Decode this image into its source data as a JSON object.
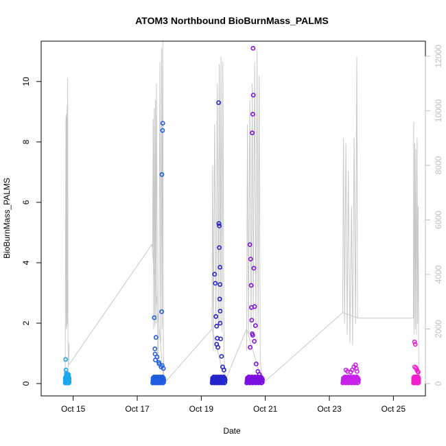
{
  "chart_data": {
    "type": "scatter",
    "title": "ATOM3 Northbound BioBurnMass_PALMS",
    "xlabel": "Date",
    "ylabel": "BioBurnMass_PALMS",
    "xlim": [
      "2016-10-14T00:00",
      "2016-10-26T00:00"
    ],
    "ylim": [
      0,
      11.2
    ],
    "y2lim": [
      0,
      12400
    ],
    "x_ticks": [
      {
        "label": "Oct 15",
        "value": "2016-10-15"
      },
      {
        "label": "Oct 17",
        "value": "2016-10-17"
      },
      {
        "label": "Oct 19",
        "value": "2016-10-19"
      },
      {
        "label": "Oct 21",
        "value": "2016-10-21"
      },
      {
        "label": "Oct 23",
        "value": "2016-10-23"
      },
      {
        "label": "Oct 25",
        "value": "2016-10-25"
      }
    ],
    "y_ticks": [
      {
        "label": "0",
        "value": 0
      },
      {
        "label": "2",
        "value": 2
      },
      {
        "label": "4",
        "value": 4
      },
      {
        "label": "6",
        "value": 6
      },
      {
        "label": "8",
        "value": 8
      },
      {
        "label": "10",
        "value": 10
      }
    ],
    "y2_ticks": [
      {
        "label": "0",
        "value": 0
      },
      {
        "label": "2000",
        "value": 2000
      },
      {
        "label": "4000",
        "value": 4000
      },
      {
        "label": "6000",
        "value": 6000
      },
      {
        "label": "8000",
        "value": 8000
      },
      {
        "label": "10000",
        "value": 10000
      },
      {
        "label": "12000",
        "value": 12000
      }
    ],
    "grid": false,
    "altitude_color": "#c8c8c8",
    "flights": [
      {
        "color": "#1aa7ee",
        "start": "2016-10-14T18:00",
        "end": "2016-10-14T21:00",
        "points": [
          [
            0.12,
            0.8
          ],
          [
            0.2,
            0.45
          ],
          [
            0.3,
            0.35
          ],
          [
            0.35,
            0.3
          ],
          [
            0.5,
            0.32
          ],
          [
            0.55,
            0.28
          ],
          [
            0.7,
            0.25
          ],
          [
            0.8,
            0.3
          ],
          [
            0.9,
            0.2
          ]
        ],
        "alt_profile": [
          [
            0,
            0
          ],
          [
            0.05,
            2000
          ],
          [
            0.1,
            5700
          ],
          [
            0.18,
            9800
          ],
          [
            0.28,
            2000
          ],
          [
            0.35,
            9900
          ],
          [
            0.4,
            2100
          ],
          [
            0.5,
            10200
          ],
          [
            0.55,
            2200
          ],
          [
            0.62,
            11200
          ],
          [
            0.7,
            1500
          ],
          [
            0.8,
            600
          ],
          [
            0.9,
            900
          ],
          [
            1,
            1500
          ]
        ]
      },
      {
        "color": "#1f5ce0",
        "start": "2016-10-17T11:30",
        "end": "2016-10-17T20:00",
        "points": [
          [
            0.15,
            2.18
          ],
          [
            0.2,
            1.15
          ],
          [
            0.22,
            0.98
          ],
          [
            0.3,
            1.53
          ],
          [
            0.25,
            0.78
          ],
          [
            0.4,
            0.88
          ],
          [
            0.55,
            0.7
          ],
          [
            0.58,
            0.65
          ],
          [
            0.75,
            0.55
          ],
          [
            0.85,
            0.6
          ],
          [
            0.82,
            6.92
          ],
          [
            0.88,
            8.38
          ],
          [
            0.9,
            8.62
          ],
          [
            0.8,
            2.38
          ],
          [
            0.95,
            0.5
          ]
        ],
        "alt_profile": [
          [
            0,
            5000
          ],
          [
            0.05,
            9700
          ],
          [
            0.1,
            2000
          ],
          [
            0.15,
            10100
          ],
          [
            0.2,
            2100
          ],
          [
            0.25,
            10400
          ],
          [
            0.3,
            2200
          ],
          [
            0.35,
            11000
          ],
          [
            0.45,
            800
          ],
          [
            0.55,
            2000
          ],
          [
            0.65,
            11800
          ],
          [
            0.72,
            1500
          ],
          [
            0.8,
            12300
          ],
          [
            0.85,
            2000
          ],
          [
            0.9,
            12600
          ],
          [
            0.95,
            1200
          ],
          [
            1,
            300
          ]
        ]
      },
      {
        "color": "#2424cc",
        "start": "2016-10-19T08:00",
        "end": "2016-10-19T18:00",
        "points": [
          [
            0.2,
            3.62
          ],
          [
            0.25,
            3.32
          ],
          [
            0.3,
            2.22
          ],
          [
            0.35,
            1.9
          ],
          [
            0.4,
            1.5
          ],
          [
            0.5,
            9.3
          ],
          [
            0.52,
            5.3
          ],
          [
            0.55,
            5.22
          ],
          [
            0.55,
            4.5
          ],
          [
            0.6,
            3.85
          ],
          [
            0.6,
            3.28
          ],
          [
            0.58,
            2.8
          ],
          [
            0.62,
            2.4
          ],
          [
            0.62,
            2.0
          ],
          [
            0.45,
            1.2
          ],
          [
            0.35,
            1.3
          ],
          [
            0.65,
            1.48
          ],
          [
            0.8,
            0.55
          ],
          [
            0.72,
            0.9
          ],
          [
            0.9,
            0.45
          ]
        ],
        "alt_profile": [
          [
            0,
            2000
          ],
          [
            0.05,
            8000
          ],
          [
            0.1,
            1200
          ],
          [
            0.2,
            9500
          ],
          [
            0.3,
            2100
          ],
          [
            0.4,
            11000
          ],
          [
            0.48,
            2000
          ],
          [
            0.55,
            11700
          ],
          [
            0.62,
            2200
          ],
          [
            0.68,
            12000
          ],
          [
            0.75,
            1900
          ],
          [
            0.82,
            11800
          ],
          [
            0.9,
            1000
          ],
          [
            1,
            200
          ]
        ]
      },
      {
        "color": "#7a10e0",
        "start": "2016-10-20T10:00",
        "end": "2016-10-20T22:00",
        "points": [
          [
            0.2,
            4.6
          ],
          [
            0.25,
            4.12
          ],
          [
            0.28,
            3.25
          ],
          [
            0.22,
            1.2
          ],
          [
            0.3,
            2.52
          ],
          [
            0.32,
            2.1
          ],
          [
            0.35,
            1.65
          ],
          [
            0.38,
            1.6
          ],
          [
            0.4,
            11.1
          ],
          [
            0.42,
            9.55
          ],
          [
            0.38,
            8.92
          ],
          [
            0.35,
            8.3
          ],
          [
            0.45,
            3.82
          ],
          [
            0.5,
            2.55
          ],
          [
            0.55,
            1.92
          ],
          [
            0.48,
            1.4
          ],
          [
            0.6,
            0.65
          ],
          [
            0.7,
            0.4
          ],
          [
            0.8,
            0.3
          ]
        ],
        "alt_profile": [
          [
            0,
            1200
          ],
          [
            0.05,
            9500
          ],
          [
            0.12,
            1800
          ],
          [
            0.2,
            10400
          ],
          [
            0.28,
            2000
          ],
          [
            0.35,
            11000
          ],
          [
            0.42,
            2400
          ],
          [
            0.5,
            11800
          ],
          [
            0.58,
            2200
          ],
          [
            0.65,
            12200
          ],
          [
            0.72,
            2000
          ],
          [
            0.78,
            11300
          ],
          [
            0.85,
            800
          ],
          [
            1,
            0
          ]
        ]
      },
      {
        "color": "#c820e8",
        "start": "2016-10-23T10:00",
        "end": "2016-10-23T22:00",
        "points": [
          [
            0.2,
            0.45
          ],
          [
            0.3,
            0.4
          ],
          [
            0.5,
            0.38
          ],
          [
            0.6,
            0.45
          ],
          [
            0.7,
            0.55
          ],
          [
            0.8,
            0.62
          ],
          [
            0.85,
            0.5
          ],
          [
            0.9,
            0.4
          ]
        ],
        "alt_profile": [
          [
            0,
            2600
          ],
          [
            0.05,
            9000
          ],
          [
            0.12,
            2200
          ],
          [
            0.2,
            8800
          ],
          [
            0.28,
            1800
          ],
          [
            0.35,
            7800
          ],
          [
            0.45,
            1500
          ],
          [
            0.55,
            6500
          ],
          [
            0.62,
            1400
          ],
          [
            0.72,
            9000
          ],
          [
            0.8,
            2200
          ],
          [
            0.88,
            12000
          ],
          [
            0.93,
            2400
          ],
          [
            1,
            2400
          ]
        ]
      },
      {
        "color": "#ee22cc",
        "start": "2016-10-25T15:00",
        "end": "2016-10-25T19:00",
        "points": [
          [
            0.2,
            1.38
          ],
          [
            0.35,
            1.3
          ],
          [
            0.25,
            0.55
          ],
          [
            0.5,
            0.52
          ],
          [
            0.65,
            0.45
          ],
          [
            0.8,
            0.4
          ],
          [
            0.9,
            0.38
          ]
        ],
        "alt_profile": [
          [
            0,
            2400
          ],
          [
            0.05,
            9600
          ],
          [
            0.12,
            1800
          ],
          [
            0.25,
            8800
          ],
          [
            0.35,
            2000
          ],
          [
            0.45,
            8600
          ],
          [
            0.55,
            1800
          ],
          [
            0.7,
            9000
          ],
          [
            0.8,
            2200
          ],
          [
            0.9,
            6500
          ],
          [
            1,
            0
          ]
        ]
      }
    ],
    "altitude_bridges": [
      {
        "x": "2016-10-14T21:00",
        "alt": 700
      },
      {
        "x": "2016-10-17T11:00",
        "alt": 5100
      },
      {
        "x": "2016-10-17T20:00",
        "alt": 0
      },
      {
        "x": "2016-10-19T08:00",
        "alt": 2000
      },
      {
        "x": "2016-10-19T18:00",
        "alt": 100
      },
      {
        "x": "2016-10-20T10:00",
        "alt": 2000
      },
      {
        "x": "2016-10-20T22:00",
        "alt": 0
      },
      {
        "x": "2016-10-23T10:00",
        "alt": 2600
      },
      {
        "x": "2016-10-23T22:00",
        "alt": 2400
      },
      {
        "x": "2016-10-25T15:00",
        "alt": 2400
      }
    ]
  }
}
